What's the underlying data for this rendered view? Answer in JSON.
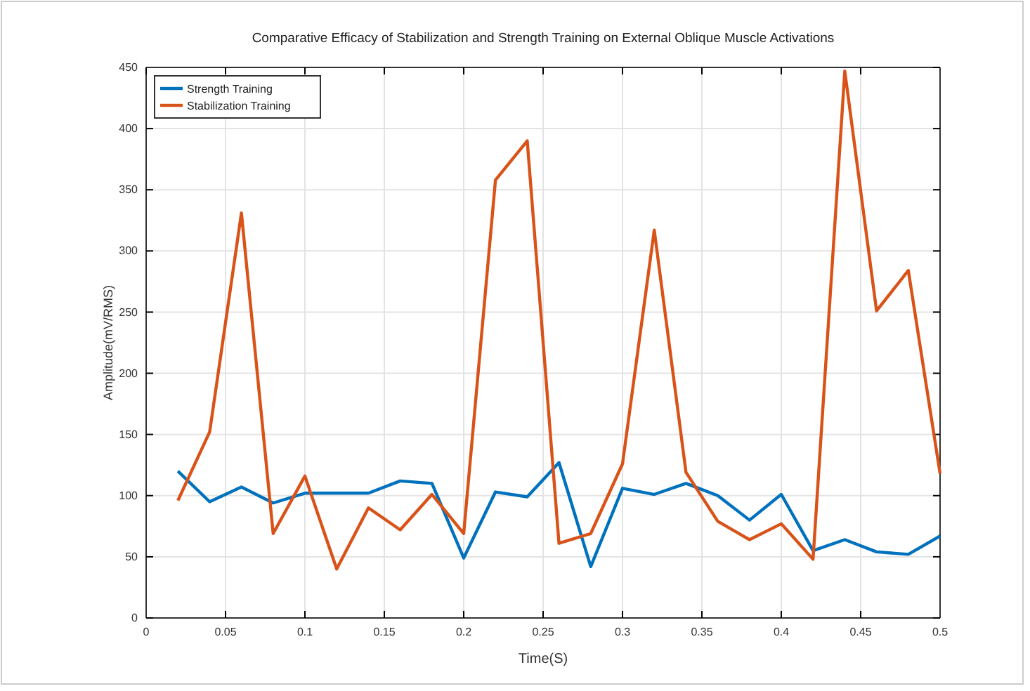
{
  "chart_data": {
    "type": "line",
    "title": "Comparative Efficacy of Stabilization and Strength Training on External Oblique Muscle Activations",
    "xlabel": "Time(S)",
    "ylabel": "Amplitude(mV/RMS)",
    "x": [
      0.02,
      0.04,
      0.06,
      0.08,
      0.1,
      0.12,
      0.14,
      0.16,
      0.18,
      0.2,
      0.22,
      0.24,
      0.26,
      0.28,
      0.3,
      0.32,
      0.34,
      0.36,
      0.38,
      0.4,
      0.42,
      0.44,
      0.46,
      0.48,
      0.5
    ],
    "series": [
      {
        "name": "Strength Training",
        "color": "#0072bd",
        "values": [
          120,
          95,
          107,
          94,
          102,
          102,
          102,
          112,
          110,
          49,
          103,
          99,
          127,
          42,
          106,
          101,
          110,
          100,
          80,
          101,
          55,
          64,
          54,
          52,
          67
        ]
      },
      {
        "name": "Stabilization Training",
        "color": "#d95319",
        "values": [
          96,
          152,
          331,
          69,
          116,
          40,
          90,
          72,
          101,
          69,
          358,
          390,
          61,
          69,
          126,
          317,
          119,
          79,
          64,
          77,
          48,
          447,
          251,
          284,
          118
        ]
      }
    ],
    "xlim": [
      0,
      0.5
    ],
    "xticks": [
      0,
      0.05,
      0.1,
      0.15,
      0.2,
      0.25,
      0.3,
      0.35,
      0.4,
      0.45,
      0.5
    ],
    "ylim": [
      0,
      450
    ],
    "yticks": [
      0,
      50,
      100,
      150,
      200,
      250,
      300,
      350,
      400,
      450
    ],
    "grid": true,
    "legend": "top left",
    "line_style": "solid",
    "marker": "none"
  }
}
